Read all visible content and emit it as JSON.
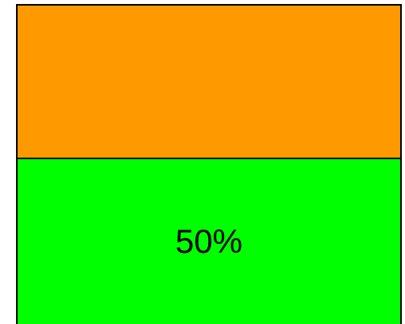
{
  "widget": {
    "value_label": "50%",
    "value_fraction": 0.5,
    "colors": {
      "top_panel": "#ff9900",
      "bottom_panel": "#00ff00",
      "border": "#000000",
      "text": "#000000"
    }
  }
}
